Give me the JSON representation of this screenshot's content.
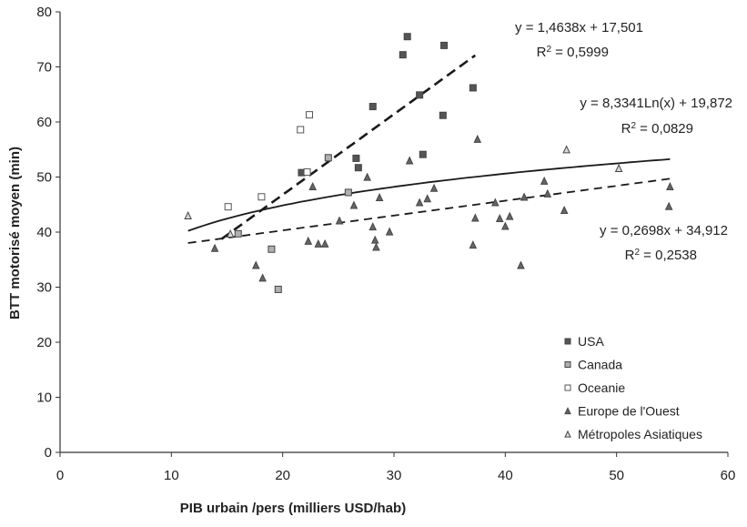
{
  "chart_data": {
    "type": "scatter",
    "title": "",
    "xlabel": "PIB urbain /pers (milliers USD/hab)",
    "ylabel": "BTT motorisé moyen (min)",
    "xlim": [
      0,
      60
    ],
    "ylim": [
      0,
      80
    ],
    "x_ticks": [
      0,
      10,
      20,
      30,
      40,
      50,
      60
    ],
    "y_ticks": [
      0,
      10,
      20,
      30,
      40,
      50,
      60,
      70,
      80
    ],
    "grid": false,
    "legend_position": "bottom-right",
    "series": [
      {
        "name": "USA",
        "marker": "square",
        "color": "#555555",
        "points": [
          [
            21.7,
            50.8
          ],
          [
            26.8,
            51.7
          ],
          [
            26.6,
            53.4
          ],
          [
            28.1,
            62.8
          ],
          [
            30.8,
            72.2
          ],
          [
            31.2,
            75.5
          ],
          [
            32.3,
            64.9
          ],
          [
            32.6,
            54.1
          ],
          [
            34.4,
            61.2
          ],
          [
            34.5,
            73.9
          ],
          [
            37.1,
            66.2
          ]
        ]
      },
      {
        "name": "Canada",
        "marker": "square",
        "color": "#b0b0b0",
        "points": [
          [
            16.0,
            39.7
          ],
          [
            19.0,
            36.9
          ],
          [
            19.6,
            29.6
          ],
          [
            24.1,
            53.5
          ],
          [
            25.9,
            47.2
          ]
        ]
      },
      {
        "name": "Oceanie",
        "marker": "open-square",
        "color": "#555555",
        "points": [
          [
            15.1,
            44.6
          ],
          [
            18.1,
            46.4
          ],
          [
            21.6,
            58.6
          ],
          [
            22.4,
            61.3
          ],
          [
            22.2,
            50.9
          ]
        ]
      },
      {
        "name": "Europe de l'Ouest",
        "marker": "triangle",
        "color": "#666666",
        "points": [
          [
            13.9,
            37.1
          ],
          [
            17.6,
            34.0
          ],
          [
            18.2,
            31.7
          ],
          [
            22.3,
            38.4
          ],
          [
            22.7,
            48.3
          ],
          [
            23.2,
            37.9
          ],
          [
            23.8,
            37.9
          ],
          [
            25.1,
            42.1
          ],
          [
            26.4,
            44.9
          ],
          [
            27.6,
            50.0
          ],
          [
            28.1,
            41.0
          ],
          [
            28.3,
            38.6
          ],
          [
            28.4,
            37.3
          ],
          [
            28.7,
            46.3
          ],
          [
            29.6,
            40.1
          ],
          [
            31.4,
            53.0
          ],
          [
            32.3,
            45.4
          ],
          [
            33.0,
            46.1
          ],
          [
            33.6,
            48.0
          ],
          [
            37.1,
            37.7
          ],
          [
            37.3,
            42.6
          ],
          [
            37.5,
            56.9
          ],
          [
            39.1,
            45.4
          ],
          [
            39.5,
            42.5
          ],
          [
            40.0,
            41.1
          ],
          [
            40.4,
            42.9
          ],
          [
            41.4,
            34.0
          ],
          [
            41.7,
            46.4
          ],
          [
            43.5,
            49.3
          ],
          [
            43.8,
            47.0
          ],
          [
            45.3,
            44.0
          ],
          [
            54.7,
            44.7
          ],
          [
            54.8,
            48.3
          ]
        ]
      },
      {
        "name": "Métropoles Asiatiques",
        "marker": "open-triangle",
        "color": "#666666",
        "points": [
          [
            11.5,
            43.0
          ],
          [
            15.3,
            39.7
          ],
          [
            45.5,
            55.0
          ],
          [
            50.2,
            51.6
          ]
        ]
      }
    ],
    "trendlines": [
      {
        "equation": "y = 1,4638x + 17,501",
        "r2_label": "R",
        "r2_sup": "2",
        "r2_value": " = 0,5999",
        "form": "linear",
        "slope": 1.4638,
        "intercept": 17.501,
        "x_range": [
          14.5,
          37.3
        ],
        "style": "dashed"
      },
      {
        "equation": "y = 8,3341Ln(x) + 19,872",
        "r2_label": "R",
        "r2_sup": "2",
        "r2_value": " = 0,0829",
        "form": "log",
        "coef": 8.3341,
        "intercept": 19.872,
        "x_range": [
          11.5,
          54.8
        ],
        "style": "solid"
      },
      {
        "equation": "y = 0,2698x + 34,912",
        "r2_label": "R",
        "r2_sup": "2",
        "r2_value": " = 0,2538",
        "form": "linear",
        "slope": 0.2698,
        "intercept": 34.912,
        "x_range": [
          11.5,
          54.8
        ],
        "style": "dashed"
      }
    ]
  }
}
